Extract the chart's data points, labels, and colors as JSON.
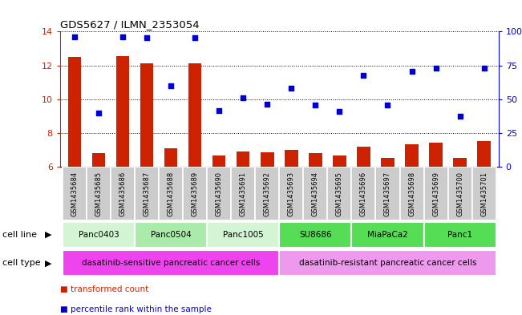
{
  "title": "GDS5627 / ILMN_2353054",
  "samples": [
    "GSM1435684",
    "GSM1435685",
    "GSM1435686",
    "GSM1435687",
    "GSM1435688",
    "GSM1435689",
    "GSM1435690",
    "GSM1435691",
    "GSM1435692",
    "GSM1435693",
    "GSM1435694",
    "GSM1435695",
    "GSM1435696",
    "GSM1435697",
    "GSM1435698",
    "GSM1435699",
    "GSM1435700",
    "GSM1435701"
  ],
  "bar_values": [
    12.5,
    6.8,
    12.55,
    12.1,
    7.1,
    12.1,
    6.7,
    6.9,
    6.85,
    7.0,
    6.8,
    6.7,
    7.2,
    6.55,
    7.35,
    7.45,
    6.55,
    7.55
  ],
  "dot_values": [
    13.7,
    9.2,
    13.7,
    13.65,
    10.8,
    13.65,
    9.35,
    10.1,
    9.7,
    10.65,
    9.65,
    9.3,
    11.4,
    9.65,
    11.65,
    11.85,
    9.0,
    11.85
  ],
  "ylim_left": [
    6,
    14
  ],
  "ylim_right": [
    0,
    100
  ],
  "yticks_left": [
    6,
    8,
    10,
    12,
    14
  ],
  "yticks_right": [
    0,
    25,
    50,
    75,
    100
  ],
  "ytick_labels_right": [
    "0",
    "25",
    "50",
    "75",
    "100%"
  ],
  "bar_color": "#cc2200",
  "dot_color": "#0000cc",
  "cell_lines": [
    {
      "label": "Panc0403",
      "start": 0,
      "end": 2,
      "color": "#d4f5d4"
    },
    {
      "label": "Panc0504",
      "start": 3,
      "end": 5,
      "color": "#aaeaaa"
    },
    {
      "label": "Panc1005",
      "start": 6,
      "end": 8,
      "color": "#d4f5d4"
    },
    {
      "label": "SU8686",
      "start": 9,
      "end": 11,
      "color": "#55dd55"
    },
    {
      "label": "MiaPaCa2",
      "start": 12,
      "end": 14,
      "color": "#55dd55"
    },
    {
      "label": "Panc1",
      "start": 15,
      "end": 17,
      "color": "#55dd55"
    }
  ],
  "cell_types": [
    {
      "label": "dasatinib-sensitive pancreatic cancer cells",
      "start": 0,
      "end": 8,
      "color": "#ee44ee"
    },
    {
      "label": "dasatinib-resistant pancreatic cancer cells",
      "start": 9,
      "end": 17,
      "color": "#ee99ee"
    }
  ],
  "legend_items": [
    {
      "label": "transformed count",
      "color": "#cc2200"
    },
    {
      "label": "percentile rank within the sample",
      "color": "#0000cc"
    }
  ],
  "cell_line_label": "cell line",
  "cell_type_label": "cell type",
  "bar_base": 6.0,
  "xtick_bg": "#cccccc"
}
